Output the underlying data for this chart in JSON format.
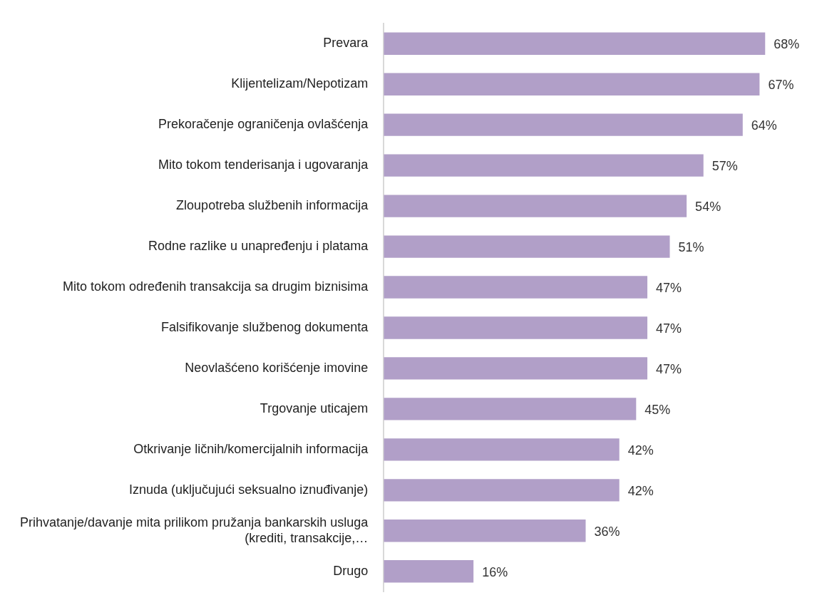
{
  "chart_data": {
    "type": "bar",
    "orientation": "horizontal",
    "color": "#b19fc8",
    "grid": false,
    "legend": false,
    "tick_labels": "y",
    "categories": [
      "Prevara",
      "Klijentelizam/Nepotizam",
      "Prekoračenje ograničenja ovlašćenja",
      "Mito tokom tenderisanja i ugovaranja",
      "Zloupotreba službenih informacija",
      "Rodne razlike u unapređenju i platama",
      "Mito tokom određenih transakcija sa drugim biznisima",
      "Falsifikovanje službenog dokumenta",
      "Neovlašćeno korišćenje imovine",
      "Trgovanje uticajem",
      "Otkrivanje ličnih/komercijalnih informacija",
      "Iznuda (uključujući seksualno iznuđivanje)",
      "Prihvatanje/davanje mita prilikom pružanja bankarskih usluga (krediti, transakcije,…",
      "Drugo"
    ],
    "values": [
      68,
      67,
      64,
      57,
      54,
      51,
      47,
      47,
      47,
      45,
      42,
      42,
      36,
      16
    ],
    "value_labels": [
      "68%",
      "67%",
      "64%",
      "57%",
      "54%",
      "51%",
      "47%",
      "47%",
      "47%",
      "45%",
      "42%",
      "42%",
      "36%",
      "16%"
    ]
  }
}
